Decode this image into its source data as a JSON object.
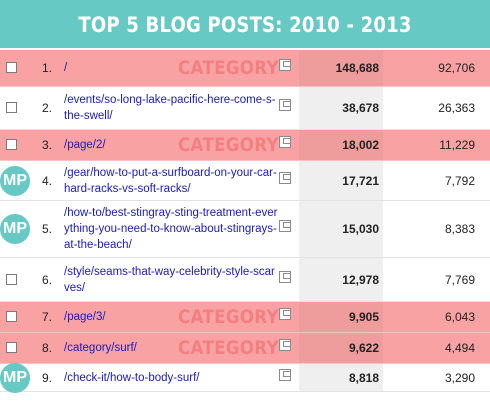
{
  "header": {
    "title": "TOP 5 BLOG POSTS: 2010 - 2013"
  },
  "colors": {
    "header_bg": "#66c9c4",
    "highlight_row": "#f9a2a4",
    "category_text": "#f47f83",
    "link": "#1a1ab8"
  },
  "rows": [
    {
      "num": "1.",
      "page": "/",
      "sessions": "148,688",
      "users": "92,706",
      "highlight": true,
      "badge": "CATEGORY",
      "mp": false
    },
    {
      "num": "2.",
      "page": "/events/so-long-lake-pacific-here-come-s-the-swell/",
      "sessions": "38,678",
      "users": "26,363",
      "highlight": false,
      "badge": "",
      "mp": false
    },
    {
      "num": "3.",
      "page": "/page/2/",
      "sessions": "18,002",
      "users": "11,229",
      "highlight": true,
      "badge": "CATEGORY",
      "mp": false
    },
    {
      "num": "4.",
      "page": "/gear/how-to-put-a-surfboard-on-your-car-hard-racks-vs-soft-racks/",
      "sessions": "17,721",
      "users": "7,792",
      "highlight": false,
      "badge": "",
      "mp": true,
      "mp_label": "MP"
    },
    {
      "num": "5.",
      "page": "/how-to/best-stingray-sting-treatment-everything-you-need-to-know-about-stingrays-at-the-beach/",
      "sessions": "15,030",
      "users": "8,383",
      "highlight": false,
      "badge": "",
      "mp": true,
      "mp_label": "MP"
    },
    {
      "num": "6.",
      "page": "/style/seams-that-way-celebrity-style-scarves/",
      "sessions": "12,978",
      "users": "7,769",
      "highlight": false,
      "badge": "",
      "mp": false
    },
    {
      "num": "7.",
      "page": "/page/3/",
      "sessions": "9,905",
      "users": "6,043",
      "highlight": true,
      "badge": "CATEGORY",
      "mp": false
    },
    {
      "num": "8.",
      "page": "/category/surf/",
      "sessions": "9,622",
      "users": "4,494",
      "highlight": true,
      "badge": "CATEGORY",
      "mp": false
    },
    {
      "num": "9.",
      "page": "/check-it/how-to-body-surf/",
      "sessions": "8,818",
      "users": "3,290",
      "highlight": false,
      "badge": "",
      "mp": true,
      "mp_label": "MP"
    }
  ]
}
